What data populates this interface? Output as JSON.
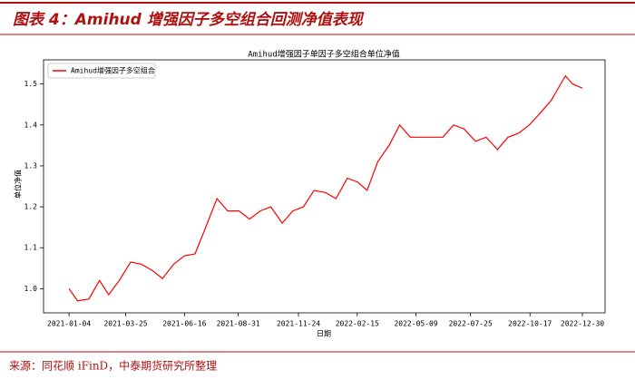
{
  "header": {
    "title": "图表 4：Amihud 增强因子多空组合回测净值表现"
  },
  "chart_data": {
    "type": "line",
    "title": "Amihud增强因子单因子多空组合单位净值",
    "xlabel": "日期",
    "ylabel": "单位净值",
    "x": [
      "2021-01-04",
      "2021-01-16",
      "2021-02-01",
      "2021-02-16",
      "2021-03-01",
      "2021-03-16",
      "2021-04-01",
      "2021-04-16",
      "2021-05-01",
      "2021-05-16",
      "2021-06-01",
      "2021-06-16",
      "2021-07-01",
      "2021-07-16",
      "2021-08-01",
      "2021-08-16",
      "2021-09-01",
      "2021-09-16",
      "2021-10-01",
      "2021-10-16",
      "2021-11-01",
      "2021-11-16",
      "2021-12-01",
      "2021-12-16",
      "2022-01-01",
      "2022-01-16",
      "2022-02-01",
      "2022-02-16",
      "2022-03-01",
      "2022-03-16",
      "2022-04-01",
      "2022-04-16",
      "2022-05-01",
      "2022-05-16",
      "2022-06-01",
      "2022-06-16",
      "2022-07-01",
      "2022-07-16",
      "2022-08-01",
      "2022-08-16",
      "2022-09-01",
      "2022-09-16",
      "2022-10-01",
      "2022-10-16",
      "2022-11-01",
      "2022-11-16",
      "2022-12-06",
      "2022-12-16",
      "2022-12-30"
    ],
    "series": [
      {
        "name": "Amihud增强因子多空组合",
        "color": "#ff0000",
        "values": [
          1.0,
          0.97,
          0.975,
          1.02,
          0.985,
          1.02,
          1.065,
          1.06,
          1.045,
          1.025,
          1.06,
          1.08,
          1.085,
          1.15,
          1.22,
          1.19,
          1.19,
          1.17,
          1.19,
          1.2,
          1.16,
          1.19,
          1.2,
          1.24,
          1.235,
          1.22,
          1.27,
          1.26,
          1.24,
          1.31,
          1.35,
          1.4,
          1.37,
          1.37,
          1.37,
          1.37,
          1.4,
          1.39,
          1.36,
          1.37,
          1.34,
          1.37,
          1.38,
          1.4,
          1.43,
          1.46,
          1.52,
          1.5,
          1.49
        ]
      }
    ],
    "xlim": [
      "2020-11-29",
      "2023-01-31"
    ],
    "ylim": [
      0.941,
      1.559
    ],
    "xticks": [
      "2021-01-04",
      "2021-03-25",
      "2021-06-16",
      "2021-08-31",
      "2021-11-24",
      "2022-02-15",
      "2022-05-09",
      "2022-07-25",
      "2022-10-17",
      "2022-12-30"
    ],
    "yticks": [
      {
        "value": 1,
        "label": "1.0"
      },
      1.1,
      1.2,
      1.3,
      1.4,
      1.5
    ],
    "legend": "upper left"
  },
  "footer": {
    "source": "来源：同花顺 iFinD，中泰期货研究所整理"
  }
}
